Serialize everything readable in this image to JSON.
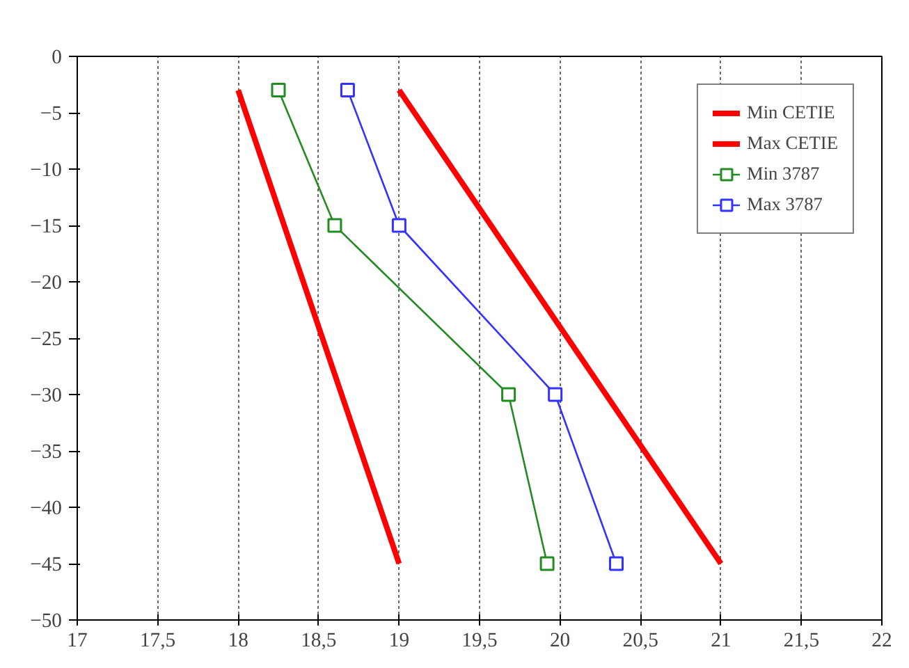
{
  "chart_data": {
    "type": "line",
    "xlim": [
      17,
      22
    ],
    "ylim": [
      -50,
      0
    ],
    "xticks": [
      17,
      {
        "value": 17.5,
        "label": "17,5"
      },
      18,
      {
        "value": 18.5,
        "label": "18,5"
      },
      19,
      {
        "value": 19.5,
        "label": "19,5"
      },
      20,
      {
        "value": 20.5,
        "label": "20,5"
      },
      21,
      {
        "value": 21.5,
        "label": "21,5"
      },
      22
    ],
    "yticks": [
      0,
      -5,
      -10,
      -15,
      -20,
      -25,
      -30,
      -35,
      -40,
      -45,
      -50
    ],
    "grid": "x",
    "legend": "top right",
    "line_style": "solid",
    "series": [
      {
        "name": "Min CETIE",
        "color": "#ff0000",
        "x": [
          18,
          19
        ],
        "values": [
          -3,
          -45
        ],
        "marker": "none"
      },
      {
        "name": "Max CETIE",
        "color": "#ff0000",
        "x": [
          19,
          21
        ],
        "values": [
          -3,
          -45
        ],
        "marker": "none"
      },
      {
        "name": "Min 3787",
        "color": "#228b22",
        "x": [
          18.25,
          18.6,
          19.68,
          19.92
        ],
        "values": [
          -3,
          -15,
          -30,
          -45
        ],
        "marker": "square"
      },
      {
        "name": "Max 3787",
        "color": "#3333ff",
        "x": [
          18.68,
          19.0,
          19.97,
          20.35
        ],
        "values": [
          -3,
          -15,
          -30,
          -45
        ],
        "marker": "square"
      }
    ]
  }
}
